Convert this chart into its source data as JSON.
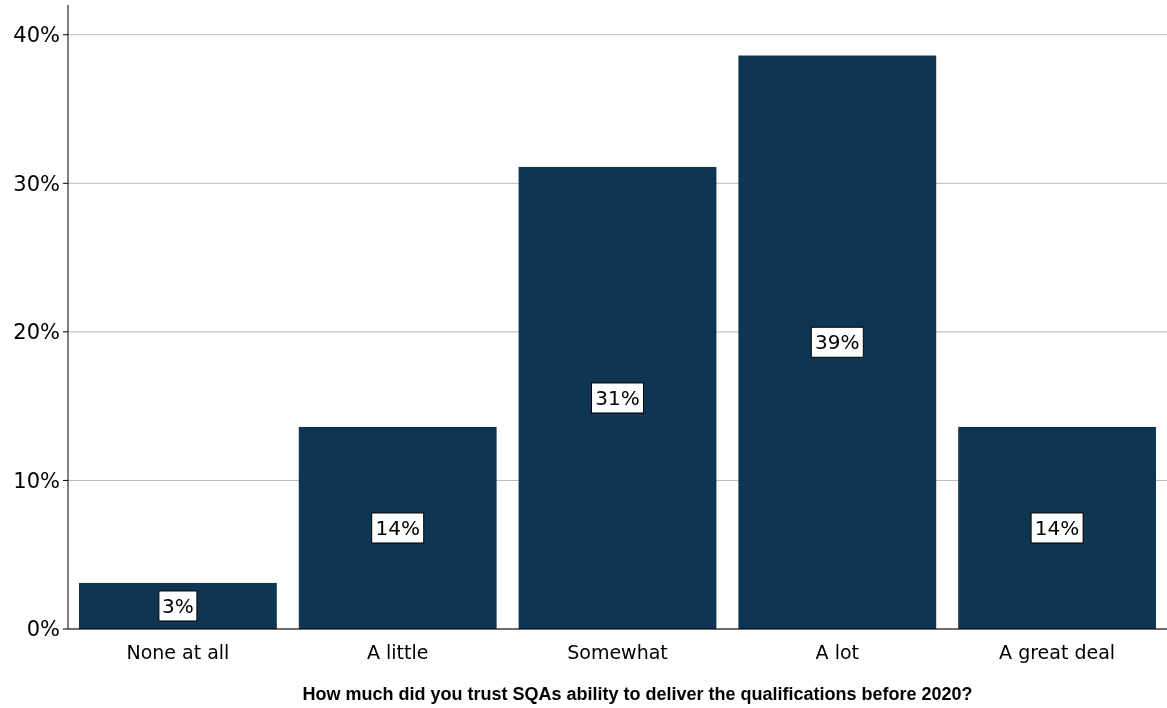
{
  "chart_data": {
    "type": "bar",
    "xlabel": "How much did you trust SQAs ability to deliver the qualifications before 2020?",
    "categories": [
      "None at all",
      "A little",
      "Somewhat",
      "A lot",
      "A great deal"
    ],
    "values": [
      3.1,
      13.6,
      31.1,
      38.6,
      13.6
    ],
    "value_labels": [
      "3%",
      "14%",
      "31%",
      "39%",
      "14%"
    ],
    "color": "#0e3652",
    "ylim": [
      0,
      42
    ],
    "yticks": [
      {
        "value": 0,
        "label": "0%"
      },
      {
        "value": 10,
        "label": "10%"
      },
      {
        "value": 20,
        "label": "20%"
      },
      {
        "value": 30,
        "label": "30%"
      },
      {
        "value": 40,
        "label": "40%"
      }
    ],
    "grid": "y"
  }
}
